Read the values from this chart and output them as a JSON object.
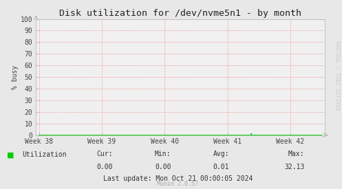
{
  "title": "Disk utilization for /dev/nvme5n1 - by month",
  "ylabel": "% busy",
  "ylim": [
    0,
    100
  ],
  "yticks": [
    0,
    10,
    20,
    30,
    40,
    50,
    60,
    70,
    80,
    90,
    100
  ],
  "xtick_labels": [
    "Week 38",
    "Week 39",
    "Week 40",
    "Week 41",
    "Week 42"
  ],
  "xtick_positions": [
    0.0,
    1.0,
    2.0,
    3.0,
    4.0
  ],
  "xlim": [
    -0.05,
    4.55
  ],
  "bg_color": "#e8e8e8",
  "plot_bg_color": "#f0f0f0",
  "grid_color": "#f5a0a0",
  "line_color": "#00cc00",
  "line_width": 0.8,
  "spike_x": 3.38,
  "spike_y": 1.5,
  "stats_cur": "0.00",
  "stats_min": "0.00",
  "stats_avg": "0.01",
  "stats_max": "32.13",
  "last_update": "Last update: Mon Oct 21 00:00:05 2024",
  "legend_label": "Utilization",
  "legend_color": "#00cc00",
  "watermark": "RRDTOOL / TOBI OETIKER",
  "munin_version": "Munin 2.0.57",
  "title_fontsize": 9.5,
  "axis_fontsize": 7,
  "stats_fontsize": 7,
  "watermark_fontsize": 5.5,
  "munin_fontsize": 6
}
